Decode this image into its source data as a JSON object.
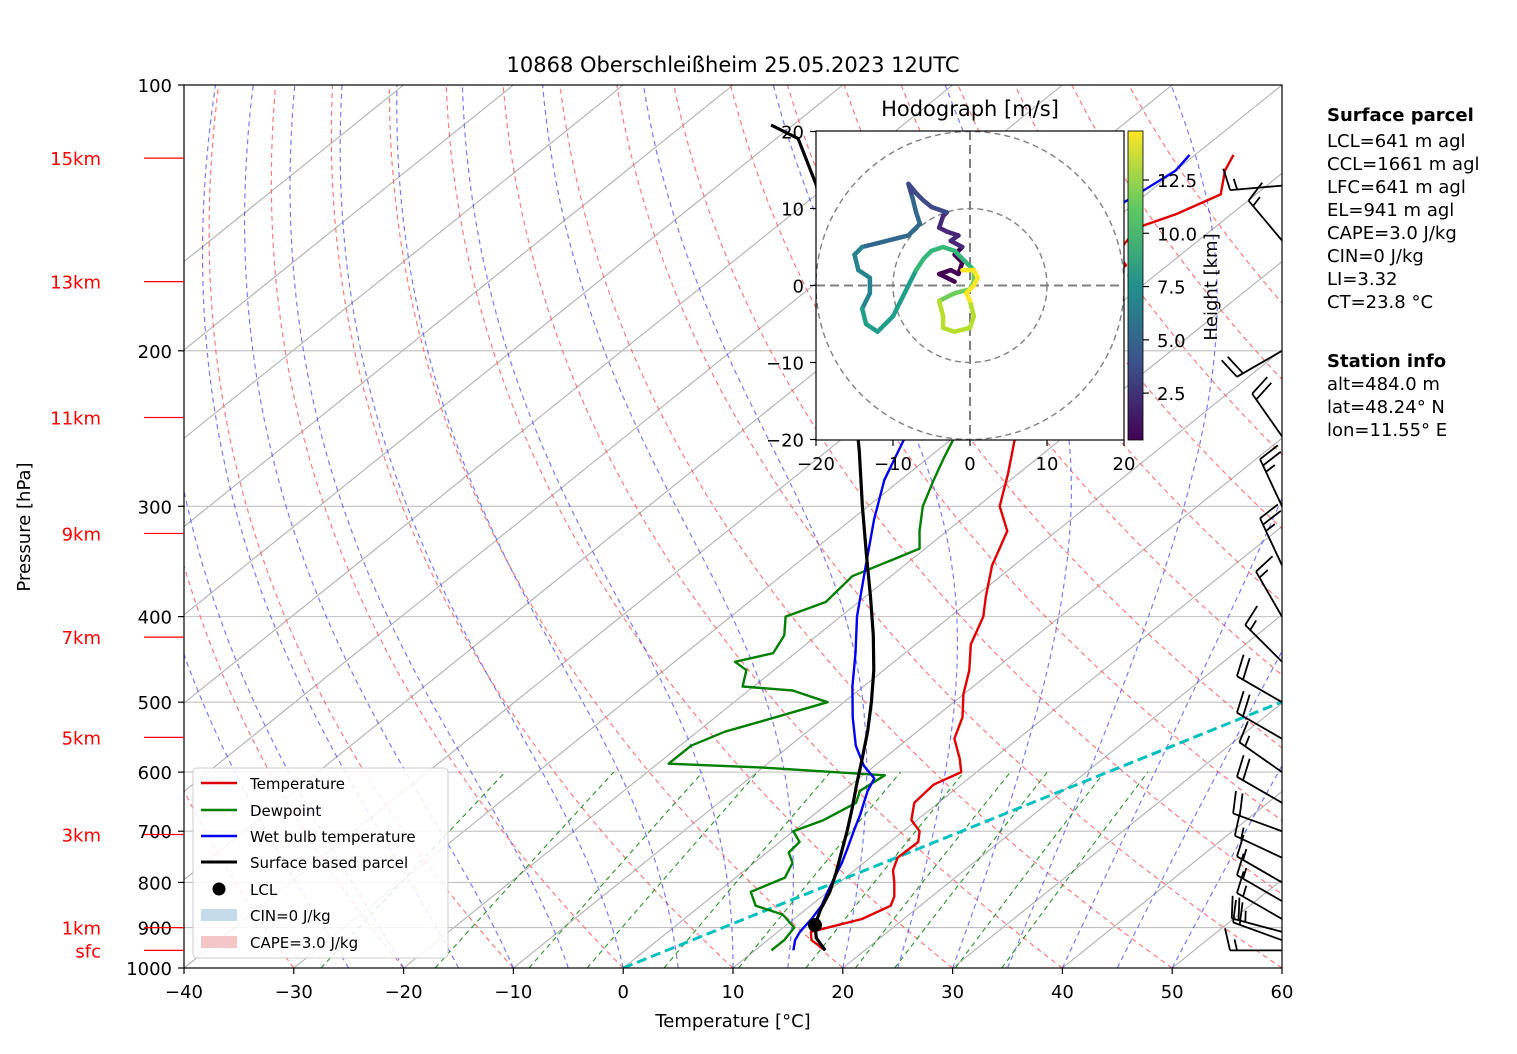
{
  "chart_data": {
    "type": "line",
    "title": "10868 Oberschleißheim 25.05.2023 12UTC",
    "xlabel": "Temperature [°C]",
    "ylabel": "Pressure [hPa]",
    "xlim": [
      -40,
      60
    ],
    "ylim": [
      1000,
      100
    ],
    "yscale": "log",
    "skew": "skew-T log-p diagram",
    "grid": true,
    "x_ticks": [
      "−40",
      "−30",
      "−20",
      "−10",
      "0",
      "10",
      "20",
      "30",
      "40",
      "50",
      "60"
    ],
    "y_ticks": [
      1000,
      900,
      800,
      700,
      600,
      500,
      400,
      300,
      200,
      100
    ],
    "height_labels": [
      {
        "text": "sfc",
        "p": 955
      },
      {
        "text": "1km",
        "p": 900
      },
      {
        "text": "3km",
        "p": 706
      },
      {
        "text": "5km",
        "p": 548
      },
      {
        "text": "7km",
        "p": 422
      },
      {
        "text": "9km",
        "p": 322
      },
      {
        "text": "11km",
        "p": 238
      },
      {
        "text": "13km",
        "p": 167
      },
      {
        "text": "15km",
        "p": 121
      }
    ],
    "legend": {
      "placement": "lower-left",
      "entries": [
        {
          "label": "Temperature",
          "color": "#e00000",
          "kind": "line"
        },
        {
          "label": "Dewpoint",
          "color": "#007f00",
          "kind": "line"
        },
        {
          "label": "Wet bulb temperature",
          "color": "#0000ee",
          "kind": "line"
        },
        {
          "label": "Surface based parcel",
          "color": "#000000",
          "kind": "line"
        },
        {
          "label": "LCL",
          "color": "#000000",
          "kind": "marker"
        },
        {
          "label": "CIN=0 J/kg",
          "color": "#c6dbea",
          "kind": "patch"
        },
        {
          "label": "CAPE=3.0 J/kg",
          "color": "#f4c6c8",
          "kind": "patch"
        }
      ]
    },
    "series": [
      {
        "name": "Temperature",
        "color": "#e00000",
        "points": [
          [
            16.4,
            955
          ],
          [
            14.0,
            930
          ],
          [
            13.0,
            910
          ],
          [
            16.2,
            880
          ],
          [
            17.3,
            850
          ],
          [
            16.6,
            830
          ],
          [
            15.0,
            800
          ],
          [
            13.5,
            775
          ],
          [
            12.5,
            750
          ],
          [
            12.6,
            720
          ],
          [
            11.5,
            700
          ],
          [
            9.5,
            680
          ],
          [
            7.8,
            650
          ],
          [
            7.5,
            620
          ],
          [
            8.6,
            600
          ],
          [
            7.0,
            580
          ],
          [
            4.2,
            550
          ],
          [
            2.5,
            520
          ],
          [
            0.0,
            490
          ],
          [
            -2.2,
            460
          ],
          [
            -5.0,
            430
          ],
          [
            -7.0,
            400
          ],
          [
            -9.0,
            380
          ],
          [
            -12.0,
            350
          ],
          [
            -14.5,
            320
          ],
          [
            -18.0,
            300
          ],
          [
            -21.0,
            275
          ],
          [
            -24.5,
            250
          ],
          [
            -26.5,
            235
          ],
          [
            -25.5,
            225
          ],
          [
            -27.5,
            215
          ],
          [
            -28.0,
            205
          ],
          [
            -29.5,
            190
          ],
          [
            -30.5,
            178
          ],
          [
            -33.5,
            170
          ],
          [
            -33.8,
            160
          ],
          [
            -36.0,
            155
          ],
          [
            -37.0,
            145
          ],
          [
            -35.0,
            140
          ],
          [
            -33.2,
            133
          ],
          [
            -35.5,
            125
          ],
          [
            -36.5,
            120
          ]
        ]
      },
      {
        "name": "Dewpoint",
        "color": "#007f00",
        "points": [
          [
            11.5,
            955
          ],
          [
            11.5,
            930
          ],
          [
            11.0,
            900
          ],
          [
            8.5,
            870
          ],
          [
            5.0,
            850
          ],
          [
            3.0,
            820
          ],
          [
            4.5,
            790
          ],
          [
            3.5,
            760
          ],
          [
            2.0,
            740
          ],
          [
            1.8,
            720
          ],
          [
            0.0,
            700
          ],
          [
            1.5,
            680
          ],
          [
            2.5,
            650
          ],
          [
            1.5,
            630
          ],
          [
            2.0,
            605
          ],
          [
            -10.0,
            593
          ],
          [
            -19.0,
            587
          ],
          [
            -19.0,
            560
          ],
          [
            -17.5,
            540
          ],
          [
            -14.5,
            520
          ],
          [
            -11.5,
            500
          ],
          [
            -16.0,
            485
          ],
          [
            -21.0,
            480
          ],
          [
            -22.5,
            460
          ],
          [
            -24.5,
            450
          ],
          [
            -22.0,
            440
          ],
          [
            -23.0,
            420
          ],
          [
            -25.0,
            400
          ],
          [
            -23.0,
            385
          ],
          [
            -23.5,
            360
          ],
          [
            -20.5,
            335
          ],
          [
            -22.5,
            320
          ],
          [
            -25.0,
            300
          ],
          [
            -27.0,
            280
          ],
          [
            -28.5,
            265
          ],
          [
            -30.0,
            250
          ],
          [
            -31.0,
            235
          ],
          [
            -32.0,
            215
          ],
          [
            -32.5,
            205
          ],
          [
            -35.5,
            195
          ],
          [
            -41.0,
            190
          ],
          [
            -43.0,
            175
          ],
          [
            -44.0,
            160
          ],
          [
            -43.0,
            150
          ],
          [
            -45.0,
            140
          ],
          [
            -45.5,
            130
          ],
          [
            -46.5,
            121
          ]
        ]
      },
      {
        "name": "Wet bulb temperature",
        "color": "#0000ee",
        "points": [
          [
            13.5,
            955
          ],
          [
            12.5,
            930
          ],
          [
            12.0,
            910
          ],
          [
            11.6,
            880
          ],
          [
            11.0,
            850
          ],
          [
            10.0,
            820
          ],
          [
            9.0,
            790
          ],
          [
            8.0,
            760
          ],
          [
            6.8,
            730
          ],
          [
            5.5,
            700
          ],
          [
            4.2,
            670
          ],
          [
            3.2,
            650
          ],
          [
            2.2,
            630
          ],
          [
            1.4,
            610
          ],
          [
            -1.0,
            590
          ],
          [
            -4.0,
            560
          ],
          [
            -7.5,
            520
          ],
          [
            -11.0,
            480
          ],
          [
            -14.5,
            440
          ],
          [
            -18.5,
            400
          ],
          [
            -23.5,
            350
          ],
          [
            -28.0,
            310
          ],
          [
            -31.5,
            280
          ],
          [
            -34.5,
            250
          ],
          [
            -36.0,
            230
          ],
          [
            -36.5,
            215
          ],
          [
            -38.5,
            200
          ],
          [
            -41.0,
            180
          ],
          [
            -42.0,
            160
          ],
          [
            -42.5,
            145
          ],
          [
            -41.0,
            135
          ],
          [
            -40.0,
            125
          ],
          [
            -40.5,
            120
          ]
        ]
      },
      {
        "name": "Surface based parcel",
        "color": "#000000",
        "points": [
          [
            16.4,
            955
          ],
          [
            14.2,
            925
          ],
          [
            12.6,
            894
          ],
          [
            11.4,
            860
          ],
          [
            10.2,
            820
          ],
          [
            8.6,
            780
          ],
          [
            6.8,
            740
          ],
          [
            4.9,
            700
          ],
          [
            2.8,
            660
          ],
          [
            0.5,
            620
          ],
          [
            -1.9,
            580
          ],
          [
            -4.5,
            540
          ],
          [
            -7.5,
            500
          ],
          [
            -10.9,
            460
          ],
          [
            -14.9,
            420
          ],
          [
            -19.5,
            380
          ],
          [
            -24.7,
            340
          ],
          [
            -30.5,
            300
          ],
          [
            -37.0,
            260
          ],
          [
            -44.8,
            220
          ],
          [
            -53.5,
            185
          ],
          [
            -62.5,
            155
          ],
          [
            -71.0,
            130
          ],
          [
            -78.0,
            115
          ],
          [
            -82.0,
            111
          ]
        ]
      }
    ],
    "lcl": {
      "t": 12.6,
      "p": 894
    },
    "dashed_reference": {
      "color": "#00bfbf",
      "points": [
        [
          0,
          1000
        ],
        [
          99,
          100
        ]
      ]
    },
    "hodograph": {
      "title": "Hodograph [m/s]",
      "xlim": [
        -20,
        20
      ],
      "ylim": [
        -20,
        20
      ],
      "ticks": [
        "−20",
        "−10",
        "0",
        "10",
        "20"
      ],
      "rings": [
        10,
        20
      ],
      "colorbar_label": "Height [km]",
      "colorbar_ticks": [
        "2.5",
        "5.0",
        "7.5",
        "10.0",
        "12.5"
      ],
      "colorbar_range": [
        0.3,
        14.8
      ],
      "path": [
        [
          -2,
          0.5
        ],
        [
          -4,
          1.5
        ],
        [
          -2.5,
          2
        ],
        [
          -1.5,
          1.5
        ],
        [
          -1,
          3
        ],
        [
          -2,
          4
        ],
        [
          -1,
          5
        ],
        [
          -2.5,
          5.8
        ],
        [
          -1.5,
          6.5
        ],
        [
          -3,
          7
        ],
        [
          -4,
          7.5
        ],
        [
          -3.5,
          9
        ],
        [
          -3,
          9.5
        ],
        [
          -5,
          10.2
        ],
        [
          -6,
          11
        ],
        [
          -7,
          12
        ],
        [
          -8,
          13.2
        ],
        [
          -7.5,
          11.5
        ],
        [
          -7,
          9.5
        ],
        [
          -6.5,
          8
        ],
        [
          -8,
          6.5
        ],
        [
          -10,
          6
        ],
        [
          -12,
          5.5
        ],
        [
          -14,
          5
        ],
        [
          -15,
          4
        ],
        [
          -14.5,
          2
        ],
        [
          -13,
          1
        ],
        [
          -13,
          -1
        ],
        [
          -14,
          -3
        ],
        [
          -13.5,
          -5
        ],
        [
          -12,
          -6
        ],
        [
          -10,
          -4
        ],
        [
          -9,
          -2
        ],
        [
          -8,
          0
        ],
        [
          -7,
          2
        ],
        [
          -6,
          3.5
        ],
        [
          -5,
          4.5
        ],
        [
          -3.5,
          5
        ],
        [
          -2,
          4.5
        ],
        [
          -1,
          3.5
        ],
        [
          0.5,
          2
        ],
        [
          0.5,
          0.5
        ],
        [
          0,
          -0.5
        ],
        [
          -2,
          -1
        ],
        [
          -3,
          -1.5
        ],
        [
          -4,
          -2
        ],
        [
          -3.5,
          -4
        ],
        [
          -3.5,
          -5.5
        ],
        [
          -2,
          -6
        ],
        [
          0,
          -5.5
        ],
        [
          0.5,
          -4
        ],
        [
          0,
          -2
        ],
        [
          -0.5,
          -1
        ],
        [
          0.5,
          0
        ],
        [
          1,
          1
        ],
        [
          0.5,
          2
        ],
        [
          -1,
          2
        ]
      ]
    },
    "barbs": [
      {
        "p": 955,
        "dir": 270,
        "spd": 15
      },
      {
        "p": 930,
        "dir": 290,
        "spd": 20
      },
      {
        "p": 910,
        "dir": 285,
        "spd": 25
      },
      {
        "p": 880,
        "dir": 300,
        "spd": 15
      },
      {
        "p": 840,
        "dir": 300,
        "spd": 15
      },
      {
        "p": 800,
        "dir": 300,
        "spd": 15
      },
      {
        "p": 750,
        "dir": 295,
        "spd": 15
      },
      {
        "p": 700,
        "dir": 290,
        "spd": 20
      },
      {
        "p": 650,
        "dir": 300,
        "spd": 20
      },
      {
        "p": 600,
        "dir": 305,
        "spd": 15
      },
      {
        "p": 550,
        "dir": 300,
        "spd": 20
      },
      {
        "p": 500,
        "dir": 300,
        "spd": 20
      },
      {
        "p": 450,
        "dir": 315,
        "spd": 15
      },
      {
        "p": 400,
        "dir": 330,
        "spd": 15
      },
      {
        "p": 350,
        "dir": 335,
        "spd": 25
      },
      {
        "p": 300,
        "dir": 335,
        "spd": 25
      },
      {
        "p": 250,
        "dir": 325,
        "spd": 20
      },
      {
        "p": 200,
        "dir": 240,
        "spd": 20
      },
      {
        "p": 150,
        "dir": 320,
        "spd": 15
      },
      {
        "p": 130,
        "dir": 265,
        "spd": 15
      }
    ]
  },
  "surface_parcel": {
    "heading": "Surface parcel",
    "lines": [
      "LCL=641 m agl",
      "CCL=1661 m agl",
      "LFC=641 m agl",
      "EL=941 m agl",
      "CAPE=3.0 J/kg",
      "CIN=0 J/kg",
      "LI=3.32",
      "CT=23.8 °C"
    ]
  },
  "station_info": {
    "heading": "Station info",
    "lines": [
      "alt=484.0 m",
      "lat=48.24° N",
      "lon=11.55° E"
    ]
  }
}
